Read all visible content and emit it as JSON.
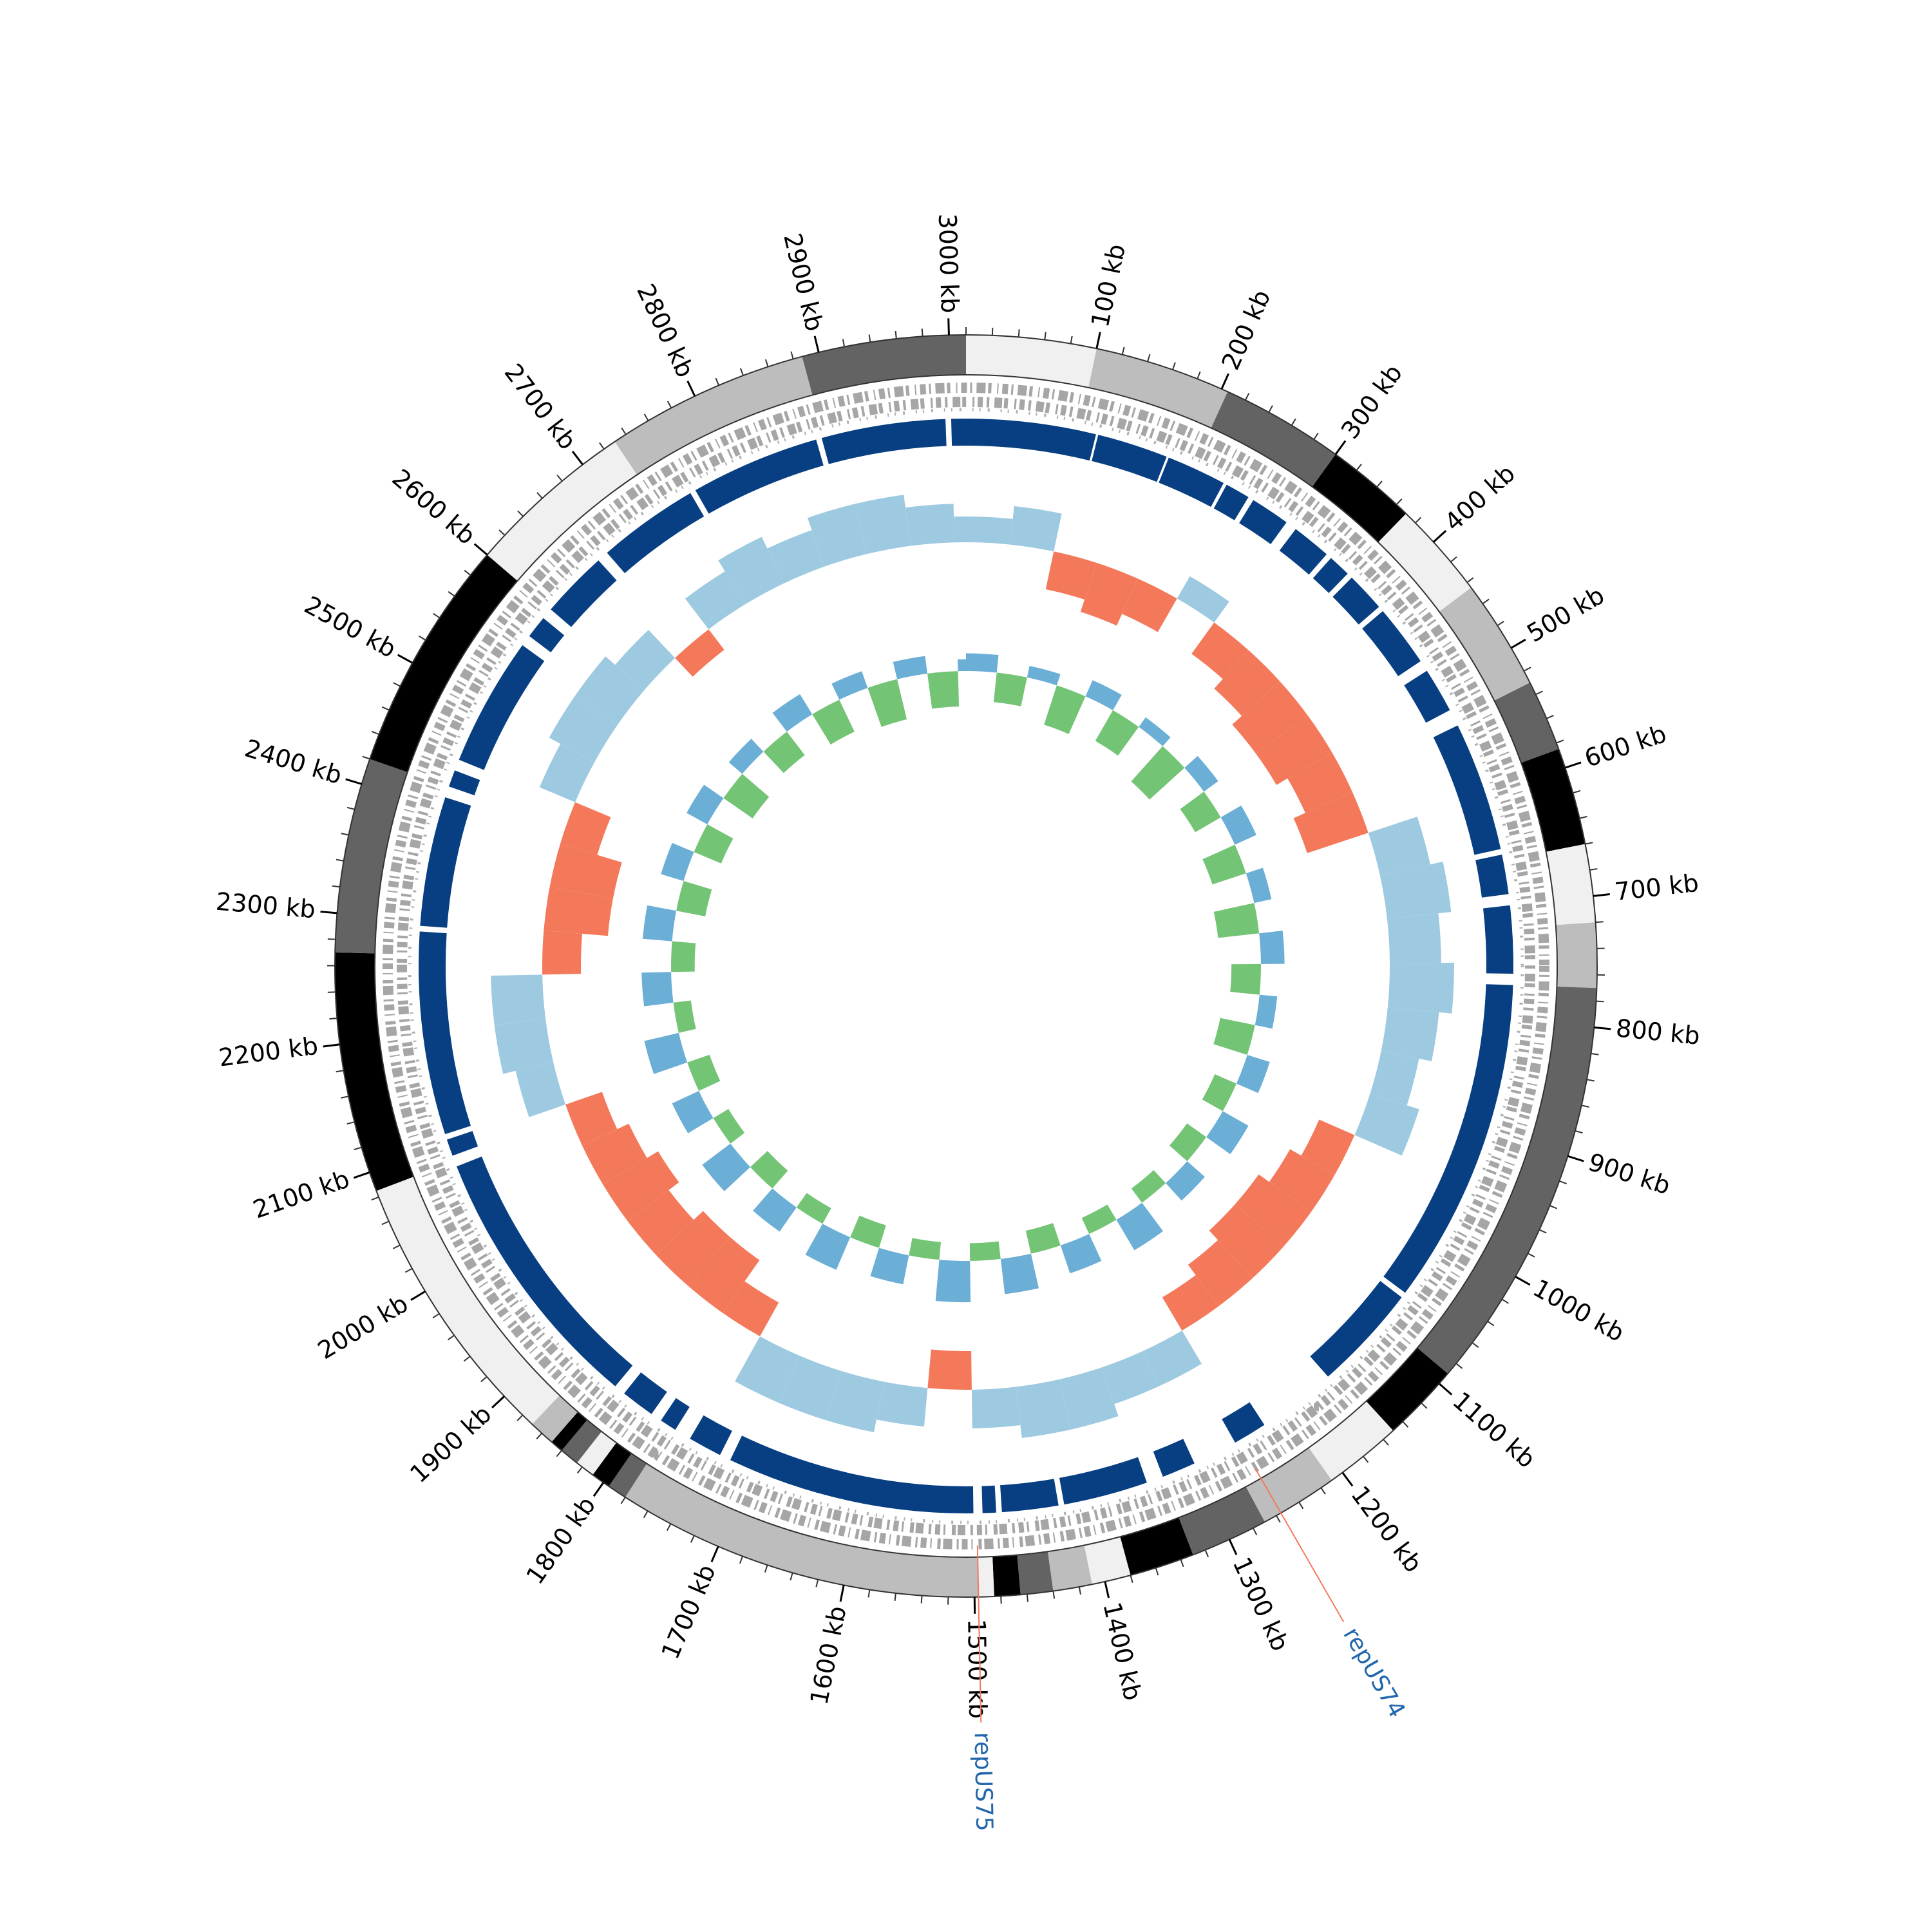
{
  "chart_data": {
    "type": "circular-genome",
    "xlim": [
      0,
      3013
    ],
    "xticks": [
      {
        "value": 100,
        "label": "100 kb"
      },
      {
        "value": 200,
        "label": "200 kb"
      },
      {
        "value": 300,
        "label": "300 kb"
      },
      {
        "value": 400,
        "label": "400 kb"
      },
      {
        "value": 500,
        "label": "500 kb"
      },
      {
        "value": 600,
        "label": "600 kb"
      },
      {
        "value": 700,
        "label": "700 kb"
      },
      {
        "value": 800,
        "label": "800 kb"
      },
      {
        "value": 900,
        "label": "900 kb"
      },
      {
        "value": 1000,
        "label": "1000 kb"
      },
      {
        "value": 1100,
        "label": "1100 kb"
      },
      {
        "value": 1200,
        "label": "1200 kb"
      },
      {
        "value": 1300,
        "label": "1300 kb"
      },
      {
        "value": 1400,
        "label": "1400 kb"
      },
      {
        "value": 1500,
        "label": "1500 kb"
      },
      {
        "value": 1600,
        "label": "1600 kb"
      },
      {
        "value": 1700,
        "label": "1700 kb"
      },
      {
        "value": 1800,
        "label": "1800 kb"
      },
      {
        "value": 1900,
        "label": "1900 kb"
      },
      {
        "value": 2000,
        "label": "2000 kb"
      },
      {
        "value": 2100,
        "label": "2100 kb"
      },
      {
        "value": 2200,
        "label": "2200 kb"
      },
      {
        "value": 2300,
        "label": "2300 kb"
      },
      {
        "value": 2400,
        "label": "2400 kb"
      },
      {
        "value": 2500,
        "label": "2500 kb"
      },
      {
        "value": 2600,
        "label": "2600 kb"
      },
      {
        "value": 2700,
        "label": "2700 kb"
      },
      {
        "value": 2800,
        "label": "2800 kb"
      },
      {
        "value": 2900,
        "label": "2900 kb"
      },
      {
        "value": 3000,
        "label": "3000 kb"
      }
    ],
    "minor_tick_step": 20,
    "bands": [
      {
        "start": 0,
        "end": 100,
        "color": "#f0f0f0"
      },
      {
        "start": 100,
        "end": 205,
        "color": "#bdbdbd"
      },
      {
        "start": 205,
        "end": 300,
        "color": "#636363"
      },
      {
        "start": 300,
        "end": 370,
        "color": "#000000"
      },
      {
        "start": 370,
        "end": 445,
        "color": "#f0f0f0"
      },
      {
        "start": 445,
        "end": 530,
        "color": "#bdbdbd"
      },
      {
        "start": 530,
        "end": 585,
        "color": "#636363"
      },
      {
        "start": 585,
        "end": 660,
        "color": "#000000"
      },
      {
        "start": 660,
        "end": 720,
        "color": "#f0f0f0"
      },
      {
        "start": 720,
        "end": 770,
        "color": "#bdbdbd"
      },
      {
        "start": 770,
        "end": 1090,
        "color": "#636363"
      },
      {
        "start": 1090,
        "end": 1150,
        "color": "#000000"
      },
      {
        "start": 1150,
        "end": 1210,
        "color": "#f0f0f0"
      },
      {
        "start": 1210,
        "end": 1270,
        "color": "#bdbdbd"
      },
      {
        "start": 1270,
        "end": 1330,
        "color": "#636363"
      },
      {
        "start": 1330,
        "end": 1380,
        "color": "#000000"
      },
      {
        "start": 1380,
        "end": 1410,
        "color": "#f0f0f0"
      },
      {
        "start": 1410,
        "end": 1440,
        "color": "#bdbdbd"
      },
      {
        "start": 1440,
        "end": 1465,
        "color": "#636363"
      },
      {
        "start": 1465,
        "end": 1485,
        "color": "#000000"
      },
      {
        "start": 1485,
        "end": 1497,
        "color": "#f0f0f0"
      },
      {
        "start": 1497,
        "end": 1780,
        "color": "#bdbdbd"
      },
      {
        "start": 1780,
        "end": 1795,
        "color": "#636363"
      },
      {
        "start": 1795,
        "end": 1810,
        "color": "#000000"
      },
      {
        "start": 1810,
        "end": 1825,
        "color": "#f0f0f0"
      },
      {
        "start": 1825,
        "end": 1840,
        "color": "#636363"
      },
      {
        "start": 1840,
        "end": 1850,
        "color": "#000000"
      },
      {
        "start": 1850,
        "end": 1870,
        "color": "#bdbdbd"
      },
      {
        "start": 1870,
        "end": 2085,
        "color": "#f0f0f0"
      },
      {
        "start": 2085,
        "end": 2270,
        "color": "#000000"
      },
      {
        "start": 2270,
        "end": 2420,
        "color": "#636363"
      },
      {
        "start": 2420,
        "end": 2600,
        "color": "#000000"
      },
      {
        "start": 2600,
        "end": 2730,
        "color": "#f0f0f0"
      },
      {
        "start": 2730,
        "end": 2887,
        "color": "#bdbdbd"
      },
      {
        "start": 2887,
        "end": 3013,
        "color": "#636363"
      }
    ],
    "contig_color": "#083f82",
    "contigs": [
      [
        0,
        115
      ],
      [
        117,
        180
      ],
      [
        182,
        235
      ],
      [
        238,
        260
      ],
      [
        265,
        300
      ],
      [
        310,
        345
      ],
      [
        350,
        370
      ],
      [
        375,
        410
      ],
      [
        415,
        470
      ],
      [
        480,
        520
      ],
      [
        535,
        650
      ],
      [
        655,
        690
      ],
      [
        700,
        760
      ],
      [
        770,
        1060
      ],
      [
        1065,
        1160
      ],
      [
        1230,
        1260
      ],
      [
        1300,
        1330
      ],
      [
        1345,
        1420
      ],
      [
        1425,
        1475
      ],
      [
        1480,
        1492
      ],
      [
        1500,
        1720
      ],
      [
        1730,
        1760
      ],
      [
        1775,
        1790
      ],
      [
        1800,
        1830
      ],
      [
        1840,
        2080
      ],
      [
        2090,
        2105
      ],
      [
        2110,
        2290
      ],
      [
        2295,
        2410
      ],
      [
        2420,
        2435
      ],
      [
        2445,
        2560
      ],
      [
        2570,
        2590
      ],
      [
        2600,
        2660
      ],
      [
        2670,
        2760
      ],
      [
        2765,
        2880
      ],
      [
        2885,
        2995
      ],
      [
        3000,
        3013
      ]
    ],
    "x": [
      0,
      50,
      100,
      150,
      200,
      250,
      300,
      350,
      400,
      450,
      500,
      550,
      600,
      650,
      700,
      750,
      800,
      850,
      900,
      950,
      1000,
      1050,
      1100,
      1150,
      1200,
      1250,
      1300,
      1350,
      1400,
      1450,
      1500,
      1550,
      1600,
      1650,
      1700,
      1750,
      1800,
      1850,
      1900,
      1950,
      2000,
      2050,
      2100,
      2150,
      2200,
      2250,
      2300,
      2350,
      2400,
      2450,
      2500,
      2550,
      2600,
      2650,
      2700,
      2750,
      2800,
      2850,
      2900,
      2950,
      3000
    ],
    "series": [
      {
        "ylim": [
          -0.06,
          0.06
        ],
        "positive_color": "#9ecae1",
        "negative_color": "#f4795a",
        "values": [
          0.02,
          0.03,
          -0.03,
          -0.04,
          -0.03,
          0.02,
          -0.03,
          -0.04,
          -0.05,
          -0.05,
          -0.04,
          -0.05,
          0.04,
          0.05,
          0.04,
          0.05,
          0.04,
          0.03,
          0.04,
          -0.03,
          -0.04,
          -0.05,
          -0.05,
          -0.04,
          -0.03,
          0.03,
          0.03,
          0.04,
          0.04,
          0.03,
          -0.03,
          0.03,
          0.04,
          0.04,
          0.04,
          -0.03,
          -0.05,
          -0.05,
          -0.04,
          -0.05,
          -0.04,
          -0.03,
          0.03,
          0.04,
          0.04,
          -0.03,
          -0.05,
          -0.05,
          -0.03,
          0.03,
          0.04,
          0.04,
          0.03,
          -0.02,
          0.03,
          0.04,
          0.03,
          0.04,
          0.04,
          0.03,
          0.02
        ]
      },
      {
        "ylim": [
          -0.12,
          0.12
        ],
        "positive_color": "#6baed6",
        "negative_color": "#74c476",
        "values": [
          0.03,
          -0.05,
          0.02,
          -0.07,
          0.03,
          -0.06,
          0.02,
          -0.08,
          0.03,
          -0.05,
          0.04,
          -0.06,
          0.03,
          -0.07,
          0.04,
          -0.05,
          0.03,
          -0.06,
          0.04,
          -0.04,
          0.05,
          -0.04,
          0.04,
          -0.03,
          0.06,
          -0.03,
          0.05,
          -0.04,
          0.06,
          -0.03,
          0.07,
          -0.03,
          0.05,
          -0.04,
          0.06,
          -0.03,
          0.05,
          -0.04,
          0.06,
          -0.03,
          0.05,
          -0.04,
          0.06,
          -0.03,
          0.05,
          -0.04,
          0.05,
          -0.05,
          0.04,
          -0.05,
          0.04,
          -0.06,
          0.03,
          -0.05,
          0.04,
          -0.06,
          0.03,
          -0.07,
          0.03,
          -0.06,
          0.02
        ]
      }
    ],
    "annotations": [
      {
        "label": "repUS74",
        "position": 1256,
        "color": "#2166ac",
        "line_color": "#f4795a"
      },
      {
        "label": "repUS75",
        "position": 1497,
        "color": "#2166ac",
        "line_color": "#f4795a"
      }
    ]
  }
}
